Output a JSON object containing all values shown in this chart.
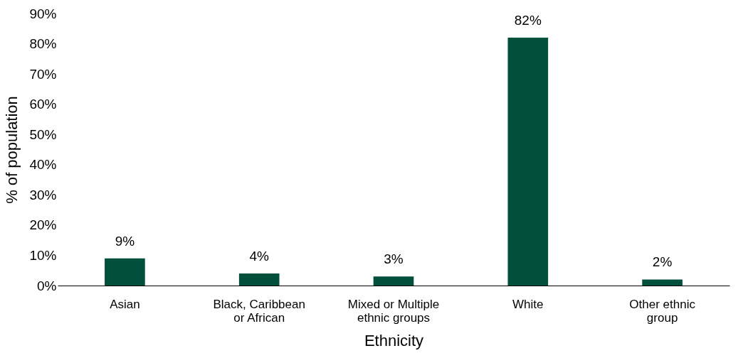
{
  "chart_data": {
    "type": "bar",
    "xlabel": "Ethnicity",
    "ylabel": "% of population",
    "categories": [
      "Asian",
      "Black, Caribbean or African",
      "Mixed or Multiple ethnic groups",
      "White",
      "Other ethnic group"
    ],
    "values": [
      9,
      4,
      3,
      82,
      2
    ],
    "value_labels": [
      "9%",
      "4%",
      "3%",
      "82%",
      "2%"
    ],
    "color": "#00503c",
    "ylim": [
      0,
      90
    ],
    "yticks": [
      {
        "value": 0,
        "label": "0%"
      },
      {
        "value": 10,
        "label": "10%"
      },
      {
        "value": 20,
        "label": "20%"
      },
      {
        "value": 30,
        "label": "30%"
      },
      {
        "value": 40,
        "label": "40%"
      },
      {
        "value": 50,
        "label": "50%"
      },
      {
        "value": 60,
        "label": "60%"
      },
      {
        "value": 70,
        "label": "70%"
      },
      {
        "value": 80,
        "label": "80%"
      },
      {
        "value": 90,
        "label": "90%"
      }
    ],
    "grid": false
  }
}
